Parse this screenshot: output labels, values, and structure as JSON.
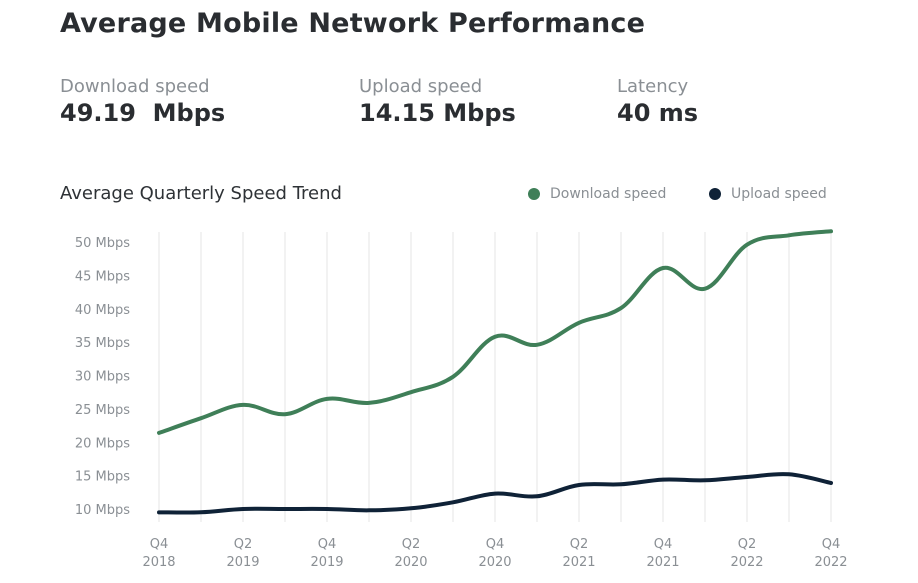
{
  "header": {
    "title": "Average Mobile Network Performance"
  },
  "stats": {
    "download": {
      "label": "Download speed",
      "value": "49.19  Mbps"
    },
    "upload": {
      "label": "Upload speed",
      "value": "14.15 Mbps"
    },
    "latency": {
      "label": "Latency",
      "value": "40 ms"
    }
  },
  "colors": {
    "download": "#3f7f58",
    "upload": "#0f2237",
    "grid": "#eeeeee"
  },
  "chart_data": {
    "type": "line",
    "title": "Average Quarterly Speed Trend",
    "xlabel": "",
    "ylabel": "",
    "ylim": [
      10,
      50
    ],
    "y_ticks": [
      {
        "value": 50,
        "label": "50 Mbps"
      },
      {
        "value": 45,
        "label": "45 Mbps"
      },
      {
        "value": 40,
        "label": "40 Mbps"
      },
      {
        "value": 35,
        "label": "35 Mbps"
      },
      {
        "value": 30,
        "label": "30 Mbps"
      },
      {
        "value": 25,
        "label": "25 Mbps"
      },
      {
        "value": 20,
        "label": "20 Mbps"
      },
      {
        "value": 15,
        "label": "15 Mbps"
      },
      {
        "value": 10,
        "label": "10 Mbps"
      }
    ],
    "x": [
      "Q4 2018",
      "Q1 2019",
      "Q2 2019",
      "Q3 2019",
      "Q4 2019",
      "Q1 2020",
      "Q2 2020",
      "Q3 2020",
      "Q4 2020",
      "Q1 2021",
      "Q2 2021",
      "Q3 2021",
      "Q4 2021",
      "Q1 2022",
      "Q2 2022",
      "Q3 2022",
      "Q4 2022"
    ],
    "x_tick_labels": [
      {
        "index": 0,
        "q": "Q4",
        "year": "2018"
      },
      {
        "index": 2,
        "q": "Q2",
        "year": "2019"
      },
      {
        "index": 4,
        "q": "Q4",
        "year": "2019"
      },
      {
        "index": 6,
        "q": "Q2",
        "year": "2020"
      },
      {
        "index": 8,
        "q": "Q4",
        "year": "2020"
      },
      {
        "index": 10,
        "q": "Q2",
        "year": "2021"
      },
      {
        "index": 12,
        "q": "Q4",
        "year": "2021"
      },
      {
        "index": 14,
        "q": "Q2",
        "year": "2022"
      },
      {
        "index": 16,
        "q": "Q4",
        "year": "2022"
      }
    ],
    "legend_position": "top-right",
    "grid": "vertical",
    "series": [
      {
        "name": "Download speed",
        "values": [
          21.4,
          23.6,
          25.6,
          24.2,
          26.5,
          25.9,
          27.5,
          29.8,
          35.8,
          34.6,
          37.9,
          40.1,
          46.1,
          43.0,
          49.6,
          51.0,
          51.6
        ]
      },
      {
        "name": "Upload speed",
        "values": [
          9.5,
          9.5,
          10.0,
          10.0,
          10.0,
          9.8,
          10.1,
          11.0,
          12.3,
          11.9,
          13.6,
          13.7,
          14.4,
          14.3,
          14.8,
          15.2,
          13.9
        ]
      }
    ]
  }
}
